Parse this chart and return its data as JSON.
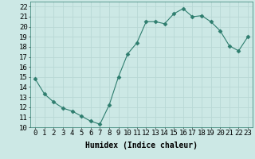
{
  "x": [
    0,
    1,
    2,
    3,
    4,
    5,
    6,
    7,
    8,
    9,
    10,
    11,
    12,
    13,
    14,
    15,
    16,
    17,
    18,
    19,
    20,
    21,
    22,
    23
  ],
  "y": [
    14.8,
    13.3,
    12.5,
    11.9,
    11.6,
    11.1,
    10.6,
    10.3,
    12.2,
    15.0,
    17.3,
    18.4,
    20.5,
    20.5,
    20.3,
    21.3,
    21.8,
    21.0,
    21.1,
    20.5,
    19.6,
    18.1,
    17.6,
    19.0
  ],
  "line_color": "#2e7d6e",
  "marker": "D",
  "marker_size": 2.5,
  "bg_color": "#cce8e5",
  "grid_color": "#b8d8d5",
  "xlabel": "Humidex (Indice chaleur)",
  "xlim": [
    -0.5,
    23.5
  ],
  "ylim": [
    10,
    22.5
  ],
  "yticks": [
    10,
    11,
    12,
    13,
    14,
    15,
    16,
    17,
    18,
    19,
    20,
    21,
    22
  ],
  "xticks": [
    0,
    1,
    2,
    3,
    4,
    5,
    6,
    7,
    8,
    9,
    10,
    11,
    12,
    13,
    14,
    15,
    16,
    17,
    18,
    19,
    20,
    21,
    22,
    23
  ],
  "xlabel_fontsize": 7,
  "tick_fontsize": 6.5
}
